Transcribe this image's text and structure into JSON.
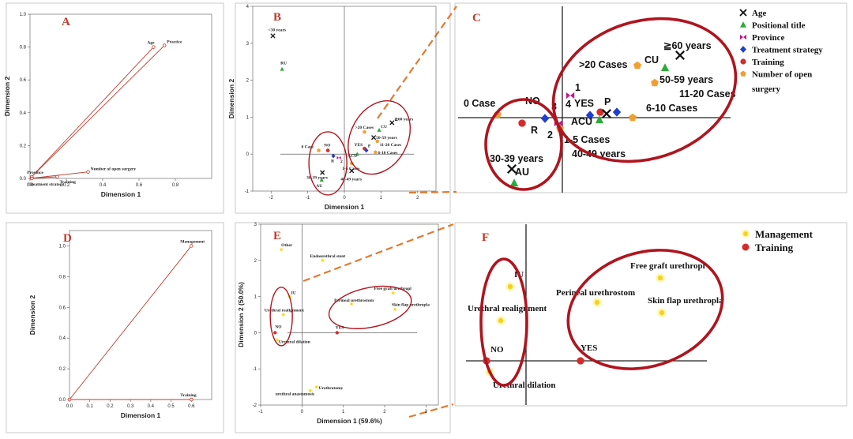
{
  "chart_data": [
    {
      "panel": "A",
      "type": "scatter",
      "xlabel": "Dimension 1",
      "ylabel": "Dimension 2",
      "xlim": [
        0,
        1.0
      ],
      "ylim": [
        0,
        1.0
      ],
      "xticks": [
        "0.0",
        "0.2",
        "0.4",
        "0.6",
        "0.8"
      ],
      "yticks": [
        "0.0",
        "0.2",
        "0.4",
        "0.6",
        "0.8",
        "1.0"
      ],
      "points": [
        {
          "label": "Age",
          "x": 0.68,
          "y": 0.8
        },
        {
          "label": "Practice",
          "x": 0.74,
          "y": 0.81
        },
        {
          "label": "Province",
          "x": 0.01,
          "y": 0.01
        },
        {
          "label": "Treatment strategy",
          "x": 0.01,
          "y": 0.0
        },
        {
          "label": "Training",
          "x": 0.15,
          "y": 0.01
        },
        {
          "label": "Number of open surgery",
          "x": 0.32,
          "y": 0.04
        }
      ]
    },
    {
      "panel": "B",
      "type": "scatter",
      "xlabel": "Dimension 1",
      "ylabel": "Dimension 2",
      "xlim": [
        -2.5,
        2.5
      ],
      "ylim": [
        -1,
        4
      ],
      "xticks": [
        "-2",
        "-1",
        "0",
        "1",
        "2"
      ],
      "yticks": [
        "-1",
        "0",
        "1",
        "2",
        "3",
        "4"
      ],
      "points": [
        {
          "label": "<30 years",
          "x": -1.95,
          "y": 3.2,
          "cat": "Age"
        },
        {
          "label": "RU",
          "x": -1.7,
          "y": 2.3,
          "cat": "Positional title"
        },
        {
          "label": "0 Case",
          "x": -0.7,
          "y": 0.1,
          "cat": "Number of open surgery"
        },
        {
          "label": "NO",
          "x": -0.45,
          "y": 0.1,
          "cat": "Training"
        },
        {
          "label": "R",
          "x": -0.3,
          "y": -0.05,
          "cat": "Treatment strategy"
        },
        {
          "label": "2",
          "x": -0.15,
          "y": -0.1,
          "cat": "Province"
        },
        {
          "label": "30-39 years",
          "x": -0.6,
          "y": -0.5,
          "cat": "Age"
        },
        {
          "label": "AU",
          "x": -0.62,
          "y": -0.7,
          "cat": "Positional title"
        },
        {
          "label": ">20 Cases",
          "x": 0.55,
          "y": 0.6,
          "cat": "Number of open surgery"
        },
        {
          "label": "CU",
          "x": 0.95,
          "y": 0.65,
          "cat": "Positional title"
        },
        {
          "label": "≧60 years",
          "x": 1.3,
          "y": 0.85,
          "cat": "Age"
        },
        {
          "label": "50-59 years",
          "x": 0.8,
          "y": 0.45,
          "cat": "Age"
        },
        {
          "label": "11-20 Cases",
          "x": 0.9,
          "y": 0.35,
          "cat": "Number of open surgery"
        },
        {
          "label": "YES",
          "x": 0.55,
          "y": 0.15,
          "cat": "Training"
        },
        {
          "label": "P",
          "x": 0.6,
          "y": 0.1,
          "cat": "Treatment strategy"
        },
        {
          "label": "6-10 Cases",
          "x": 0.85,
          "y": 0.05,
          "cat": "Number of open surgery"
        },
        {
          "label": "ACU",
          "x": 0.35,
          "y": 0.0,
          "cat": "Positional title"
        },
        {
          "label": "1-5 Cases",
          "x": 0.2,
          "y": -0.25,
          "cat": "Number of open surgery"
        },
        {
          "label": "40-49 years",
          "x": 0.2,
          "y": -0.45,
          "cat": "Age"
        }
      ]
    },
    {
      "panel": "C",
      "type": "scatter",
      "legend": [
        {
          "name": "Age",
          "color": "#111111"
        },
        {
          "name": "Positional title",
          "color": "#2eaa3a"
        },
        {
          "name": "Province",
          "color": "#c2188c"
        },
        {
          "name": "Treatment strategy",
          "color": "#1f3fd0"
        },
        {
          "name": "Training",
          "color": "#d62b2b"
        },
        {
          "name": "Number of open surgery",
          "color": "#f0a030"
        }
      ],
      "labels": [
        "≧60 years",
        "CU",
        ">20 Cases",
        "50-59 years",
        "11-20 Cases",
        "1",
        "4",
        "YES",
        "P",
        "6-10 Cases",
        "ACU",
        "0 Case",
        "NO",
        "3",
        "R",
        "2",
        "1-5 Cases",
        "40-49 years",
        "30-39 years",
        "AU"
      ]
    },
    {
      "panel": "D",
      "type": "scatter",
      "xlabel": "Dimension 1",
      "ylabel": "Dimension 2",
      "xlim": [
        0,
        0.7
      ],
      "ylim": [
        0,
        1.1
      ],
      "xticks": [
        "0.0",
        "0.1",
        "0.2",
        "0.3",
        "0.4",
        "0.5",
        "0.6"
      ],
      "yticks": [
        "0.0",
        "0.2",
        "0.4",
        "0.6",
        "0.8",
        "1.0"
      ],
      "points": [
        {
          "label": "Management",
          "x": 0.6,
          "y": 1.0
        },
        {
          "label": "Training",
          "x": 0.6,
          "y": 0.0
        }
      ]
    },
    {
      "panel": "E",
      "type": "scatter",
      "xlabel": "Dimension 1 (59.6%)",
      "ylabel": "Dimension 2 (50.0%)",
      "xlim": [
        -1,
        3.3
      ],
      "ylim": [
        -2,
        3
      ],
      "xticks": [
        "-1",
        "0",
        "1",
        "2",
        "3"
      ],
      "yticks": [
        "-2",
        "-1",
        "0",
        "1",
        "2",
        "3"
      ],
      "points": [
        {
          "label": "Other",
          "x": -0.5,
          "y": 2.3,
          "cat": "Management"
        },
        {
          "label": "Endourethral stent",
          "x": 0.5,
          "y": 2.0,
          "cat": "Management"
        },
        {
          "label": "IU",
          "x": -0.3,
          "y": 1.0,
          "cat": "Management"
        },
        {
          "label": "Urethral realignment",
          "x": -0.45,
          "y": 0.5,
          "cat": "Management"
        },
        {
          "label": "NO",
          "x": -0.65,
          "y": 0.0,
          "cat": "Training"
        },
        {
          "label": "Urethral dilation",
          "x": -0.6,
          "y": -0.2,
          "cat": "Management"
        },
        {
          "label": "YES",
          "x": 0.85,
          "y": 0.0,
          "cat": "Training"
        },
        {
          "label": "Free graft urethropl",
          "x": 2.2,
          "y": 1.1,
          "cat": "Management"
        },
        {
          "label": "Perineal urethrostom",
          "x": 1.2,
          "y": 0.8,
          "cat": "Management"
        },
        {
          "label": "Skin flap urethropla",
          "x": 2.25,
          "y": 0.65,
          "cat": "Management"
        },
        {
          "label": "Urethrotomy",
          "x": 0.35,
          "y": -1.5,
          "cat": "Management"
        },
        {
          "label": "urethral anastomosis",
          "x": 0.2,
          "y": -1.6,
          "cat": "Management"
        }
      ]
    },
    {
      "panel": "F",
      "type": "scatter",
      "legend": [
        {
          "name": "Management",
          "color": "#f5d020"
        },
        {
          "name": "Training",
          "color": "#d62b2b"
        }
      ],
      "labels": [
        "IU",
        "Urethral realignment",
        "NO",
        "Urethral dilation",
        "YES",
        "Free graft urethropl",
        "Perineal urethrostom",
        "Skin flap urethropla"
      ]
    }
  ],
  "panels": {
    "A": "A",
    "B": "B",
    "C": "C",
    "D": "D",
    "E": "E",
    "F": "F"
  },
  "colors": {
    "accent": "#c0392b",
    "ellipse": "#b0141e",
    "dash": "#e07a30",
    "age": "#111111",
    "title": "#2eaa3a",
    "province": "#c2188c",
    "treatment": "#1f3fd0",
    "training": "#d62b2b",
    "surgery": "#f0a030",
    "management": "#f5d020"
  }
}
